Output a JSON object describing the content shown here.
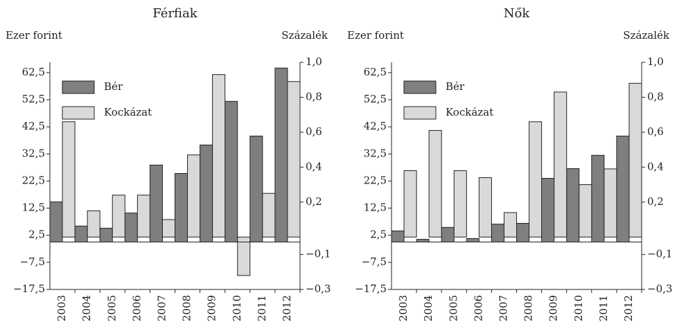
{
  "chart_data": [
    {
      "type": "bar",
      "title": "Férfiak",
      "ylabel": "Ezer forint",
      "y2label": "Százalék",
      "categories": [
        "2003",
        "2004",
        "2005",
        "2006",
        "2007",
        "2008",
        "2009",
        "2010",
        "2011",
        "2012"
      ],
      "series": [
        {
          "name": "Bér",
          "color": "#7f7f7f",
          "values": [
            14.8,
            5.9,
            5.1,
            10.7,
            28.4,
            25.3,
            35.8,
            51.9,
            39.1,
            64.2
          ]
        },
        {
          "name": "Kockázat",
          "color": "#d9d9d9",
          "axis": "y2",
          "values": [
            0.66,
            0.15,
            0.24,
            0.24,
            0.1,
            0.47,
            0.93,
            -0.22,
            0.25,
            0.89
          ]
        }
      ],
      "ylim": [
        -17.5,
        66.3
      ],
      "yticks": [
        {
          "value": -17.5,
          "label": "−17,5"
        },
        {
          "value": -7.5,
          "label": "−7,5"
        },
        {
          "value": 2.5,
          "label": "2,5"
        },
        {
          "value": 12.5,
          "label": "12,5"
        },
        {
          "value": 22.5,
          "label": "22,5"
        },
        {
          "value": 32.5,
          "label": "32,5"
        },
        {
          "value": 42.5,
          "label": "42,5"
        },
        {
          "value": 52.5,
          "label": "52,5"
        },
        {
          "value": 62.5,
          "label": "62,5"
        }
      ],
      "y2lim": [
        -0.3,
        1.0
      ],
      "y2ticks": [
        {
          "value": -0.3,
          "label": "−0,3"
        },
        {
          "value": -0.1,
          "label": "−0,1"
        },
        {
          "value": 0.2,
          "label": "0,2"
        },
        {
          "value": 0.4,
          "label": "0,4"
        },
        {
          "value": 0.6,
          "label": "0,6"
        },
        {
          "value": 0.8,
          "label": "0,8"
        },
        {
          "value": 1.0,
          "label": "1,0"
        }
      ],
      "legend": "upper left"
    },
    {
      "type": "bar",
      "title": "Nők",
      "ylabel": "Ezer forint",
      "y2label": "Százalék",
      "categories": [
        "2003",
        "2004",
        "2005",
        "2006",
        "2007",
        "2008",
        "2009",
        "2010",
        "2011",
        "2012"
      ],
      "series": [
        {
          "name": "Bér",
          "color": "#7f7f7f",
          "values": [
            4.1,
            1.0,
            5.4,
            1.3,
            6.6,
            6.9,
            23.5,
            27.1,
            32.0,
            39.1
          ]
        },
        {
          "name": "Kockázat",
          "color": "#d9d9d9",
          "axis": "y2",
          "values": [
            0.38,
            0.61,
            0.38,
            0.34,
            0.14,
            0.66,
            0.83,
            0.3,
            0.39,
            0.88
          ]
        }
      ],
      "ylim": [
        -17.5,
        66.3
      ],
      "yticks": [
        {
          "value": -17.5,
          "label": "−17,5"
        },
        {
          "value": -7.5,
          "label": "−7,5"
        },
        {
          "value": 2.5,
          "label": "2,5"
        },
        {
          "value": 12.5,
          "label": "12,5"
        },
        {
          "value": 22.5,
          "label": "22,5"
        },
        {
          "value": 32.5,
          "label": "32,5"
        },
        {
          "value": 42.5,
          "label": "42,5"
        },
        {
          "value": 52.5,
          "label": "52,5"
        },
        {
          "value": 62.5,
          "label": "62,5"
        }
      ],
      "y2lim": [
        -0.3,
        1.0
      ],
      "y2ticks": [
        {
          "value": -0.3,
          "label": "−0,3"
        },
        {
          "value": -0.1,
          "label": "−0,1"
        },
        {
          "value": 0.2,
          "label": "0,2"
        },
        {
          "value": 0.4,
          "label": "0,4"
        },
        {
          "value": 0.6,
          "label": "0,6"
        },
        {
          "value": 0.8,
          "label": "0,8"
        },
        {
          "value": 1.0,
          "label": "1,0"
        }
      ],
      "legend": "upper left"
    }
  ]
}
